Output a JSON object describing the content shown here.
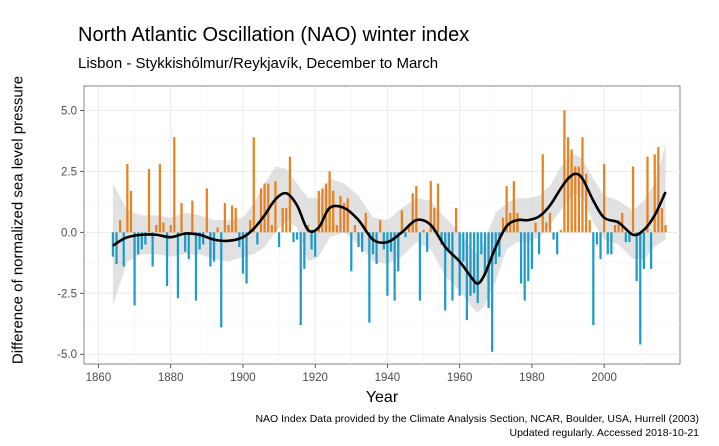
{
  "chart_data": {
    "type": "bar",
    "title": "North Atlantic Oscillation (NAO) winter index",
    "subtitle": "Lisbon - Stykkishólmur/Reykjavík, December to March",
    "xlabel": "Year",
    "ylabel": "Difference of normalized sea level pressure",
    "caption_line1": "NAO Index Data provided by the Climate Analysis Section, NCAR, Boulder, USA, Hurrell (2003)",
    "caption_line2": "Updated regularly. Accessed 2018-10-21",
    "xlim": [
      1856,
      2021
    ],
    "ylim": [
      -5.4,
      6.0
    ],
    "x_ticks": [
      1860,
      1880,
      1900,
      1920,
      1940,
      1960,
      1980,
      2000
    ],
    "x_tick_labels": [
      "1860",
      "1880",
      "1900",
      "1920",
      "1940",
      "1960",
      "1980",
      "2000"
    ],
    "y_ticks": [
      -5.0,
      -2.5,
      0.0,
      2.5,
      5.0
    ],
    "y_tick_labels": [
      "-5.0",
      "-2.5",
      "0.0",
      "2.5",
      "5.0"
    ],
    "grid": true,
    "colors": {
      "positive": "#e8821e",
      "negative": "#1d9bc9",
      "smooth": "#000000",
      "band": "#c8c8c8",
      "panel": "#ffffff",
      "grid": "#ebebeb"
    },
    "series": [
      {
        "name": "NAO index",
        "years": [
          1864,
          1865,
          1866,
          1867,
          1868,
          1869,
          1870,
          1871,
          1872,
          1873,
          1874,
          1875,
          1876,
          1877,
          1878,
          1879,
          1880,
          1881,
          1882,
          1883,
          1884,
          1885,
          1886,
          1887,
          1888,
          1889,
          1890,
          1891,
          1892,
          1893,
          1894,
          1895,
          1896,
          1897,
          1898,
          1899,
          1900,
          1901,
          1902,
          1903,
          1904,
          1905,
          1906,
          1907,
          1908,
          1909,
          1910,
          1911,
          1912,
          1913,
          1914,
          1915,
          1916,
          1917,
          1918,
          1919,
          1920,
          1921,
          1922,
          1923,
          1924,
          1925,
          1926,
          1927,
          1928,
          1929,
          1930,
          1931,
          1932,
          1933,
          1934,
          1935,
          1936,
          1937,
          1938,
          1939,
          1940,
          1941,
          1942,
          1943,
          1944,
          1945,
          1946,
          1947,
          1948,
          1949,
          1950,
          1951,
          1952,
          1953,
          1954,
          1955,
          1956,
          1957,
          1958,
          1959,
          1960,
          1961,
          1962,
          1963,
          1964,
          1965,
          1966,
          1967,
          1968,
          1969,
          1970,
          1971,
          1972,
          1973,
          1974,
          1975,
          1976,
          1977,
          1978,
          1979,
          1980,
          1981,
          1982,
          1983,
          1984,
          1985,
          1986,
          1987,
          1988,
          1989,
          1990,
          1991,
          1992,
          1993,
          1994,
          1995,
          1996,
          1997,
          1998,
          1999,
          2000,
          2001,
          2002,
          2003,
          2004,
          2005,
          2006,
          2007,
          2008,
          2009,
          2010,
          2011,
          2012,
          2013,
          2014,
          2015,
          2016,
          2017
        ],
        "values": [
          -1.0,
          -1.3,
          0.5,
          -1.4,
          2.8,
          1.7,
          -3.0,
          -0.9,
          -0.7,
          -0.5,
          2.6,
          -1.4,
          0.3,
          2.8,
          0.4,
          -2.2,
          0.3,
          3.9,
          -2.7,
          1.2,
          -0.8,
          -1.1,
          1.3,
          -2.8,
          -0.7,
          -0.5,
          1.8,
          -1.4,
          -1.2,
          0.2,
          -3.9,
          1.2,
          0.3,
          1.1,
          1.0,
          -0.6,
          -1.7,
          -2.1,
          0.5,
          3.9,
          -0.5,
          1.8,
          2.0,
          2.0,
          0.3,
          2.1,
          -0.6,
          1.0,
          1.0,
          3.1,
          -0.4,
          -0.3,
          -3.8,
          -1.5,
          0.3,
          -0.7,
          -1.0,
          1.7,
          1.8,
          2.0,
          2.5,
          1.7,
          0.3,
          1.5,
          1.2,
          1.4,
          -1.6,
          0.3,
          -0.6,
          -0.8,
          0.8,
          -3.7,
          -0.9,
          -1.3,
          0.5,
          -0.7,
          -2.6,
          -0.8,
          -2.8,
          -1.6,
          0.9,
          -0.2,
          0.3,
          1.6,
          1.9,
          -2.8,
          0.1,
          -0.8,
          2.1,
          1.0,
          2.0,
          -0.5,
          -3.2,
          -0.8,
          -2.8,
          1.0,
          -2.6,
          -1.2,
          -3.6,
          -2.6,
          -2.5,
          -2.9,
          -0.9,
          -1.8,
          -3.1,
          -4.9,
          -1.3,
          -1.0,
          0.6,
          1.9,
          0.8,
          2.1,
          0.8,
          -2.1,
          -2.8,
          -2.0,
          -1.5,
          0.4,
          -0.9,
          3.2,
          0.4,
          0.8,
          -0.3,
          -0.9,
          0.1,
          5.0,
          3.9,
          3.4,
          2.7,
          2.7,
          3.9,
          2.4,
          0.5,
          -3.8,
          -0.5,
          -1.1,
          2.8,
          -0.9,
          -0.9,
          0.3,
          0.5,
          0.8,
          -0.4,
          -0.4,
          2.7,
          -2.0,
          -4.6,
          -1.5,
          3.1,
          -1.5,
          3.2,
          3.5,
          1.0,
          0.3
        ]
      },
      {
        "name": "smoothed",
        "years": [
          1864,
          1866,
          1868,
          1872,
          1876,
          1880,
          1884,
          1888,
          1892,
          1896,
          1900,
          1903,
          1906,
          1909,
          1912,
          1915,
          1918,
          1921,
          1924,
          1928,
          1932,
          1936,
          1940,
          1944,
          1948,
          1952,
          1956,
          1960,
          1963,
          1965,
          1967,
          1970,
          1973,
          1976,
          1979,
          1982,
          1985,
          1988,
          1990,
          1992,
          1994,
          1997,
          2000,
          2004,
          2008,
          2011,
          2014,
          2017
        ],
        "values": [
          -0.55,
          -0.35,
          -0.2,
          -0.1,
          -0.1,
          -0.2,
          -0.05,
          -0.1,
          -0.3,
          -0.35,
          -0.2,
          0.15,
          0.7,
          1.35,
          1.6,
          1.1,
          0.1,
          0.2,
          1.0,
          1.0,
          0.5,
          -0.3,
          -0.4,
          0.0,
          0.5,
          0.3,
          -0.6,
          -1.2,
          -1.8,
          -2.1,
          -1.7,
          -0.6,
          0.25,
          0.5,
          0.5,
          0.65,
          1.1,
          1.8,
          2.2,
          2.4,
          2.2,
          1.3,
          0.6,
          0.4,
          -0.1,
          0.1,
          0.7,
          1.65
        ]
      }
    ],
    "band": {
      "years": [
        1864,
        1868,
        1872,
        1876,
        1880,
        1884,
        1888,
        1892,
        1896,
        1900,
        1903,
        1906,
        1909,
        1912,
        1915,
        1918,
        1921,
        1924,
        1928,
        1932,
        1936,
        1940,
        1944,
        1948,
        1952,
        1956,
        1960,
        1963,
        1965,
        1967,
        1970,
        1973,
        1976,
        1979,
        1982,
        1985,
        1988,
        1990,
        1992,
        1994,
        1997,
        2000,
        2004,
        2008,
        2011,
        2014,
        2017
      ],
      "upper": [
        2.0,
        0.9,
        0.7,
        0.7,
        0.6,
        0.8,
        0.7,
        0.5,
        0.5,
        0.6,
        1.2,
        2.0,
        2.7,
        2.6,
        2.0,
        1.4,
        1.4,
        2.2,
        2.0,
        1.5,
        0.6,
        0.5,
        1.0,
        1.4,
        1.3,
        0.6,
        0.0,
        -0.6,
        -0.9,
        -0.3,
        0.8,
        1.2,
        1.4,
        1.4,
        1.5,
        1.9,
        2.7,
        3.1,
        3.2,
        3.0,
        2.2,
        1.5,
        1.3,
        0.9,
        1.3,
        2.0,
        3.6
      ],
      "lower": [
        -3.0,
        -1.2,
        -0.9,
        -0.9,
        -1.0,
        -0.9,
        -0.9,
        -1.1,
        -1.2,
        -1.0,
        -0.9,
        -0.6,
        0.0,
        0.5,
        0.2,
        -1.2,
        -1.0,
        -0.2,
        0.0,
        -0.5,
        -1.2,
        -1.3,
        -1.0,
        -0.4,
        -0.7,
        -1.8,
        -2.4,
        -3.0,
        -3.3,
        -3.0,
        -2.0,
        -0.7,
        -0.4,
        -0.4,
        -0.2,
        0.3,
        0.9,
        1.3,
        1.6,
        1.4,
        0.4,
        -0.3,
        -0.5,
        -1.1,
        -1.1,
        -0.6,
        -0.3
      ]
    }
  }
}
